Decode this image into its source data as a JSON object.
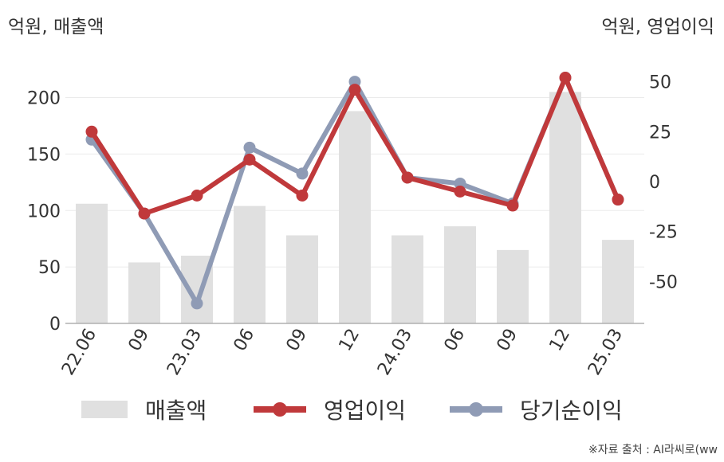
{
  "units": {
    "left": "억원, 매출액",
    "right": "억원, 영업이익"
  },
  "source": "※자료 출처 : AI라씨로(ww",
  "chart_data": {
    "type": "bar+line",
    "categories": [
      "22.06",
      "09",
      "23.03",
      "06",
      "09",
      "12",
      "24.03",
      "06",
      "09",
      "12",
      "25.03"
    ],
    "series": [
      {
        "name": "매출액",
        "type": "bar",
        "axis": "left",
        "color": "#e0e0e0",
        "values": [
          106,
          54,
          60,
          104,
          78,
          188,
          78,
          86,
          65,
          205,
          74
        ]
      },
      {
        "name": "영업이익",
        "type": "line",
        "axis": "right",
        "color": "#c0393b",
        "values": [
          25,
          -16,
          -7,
          11,
          -7,
          46,
          2,
          -5,
          -12,
          52,
          -9
        ]
      },
      {
        "name": "당기순이익",
        "type": "line",
        "axis": "right",
        "color": "#8f9bb5",
        "values": [
          21,
          -16,
          -61,
          17,
          4,
          50,
          2,
          -1,
          -11,
          52,
          -9
        ]
      }
    ],
    "y_left": {
      "range": [
        0,
        230
      ],
      "ticks": [
        0,
        50,
        100,
        150,
        200
      ]
    },
    "y_right": {
      "range": [
        -71,
        59
      ],
      "ticks": [
        -50,
        -25,
        0,
        25,
        50
      ]
    },
    "grid": true,
    "legend": "bottom"
  }
}
